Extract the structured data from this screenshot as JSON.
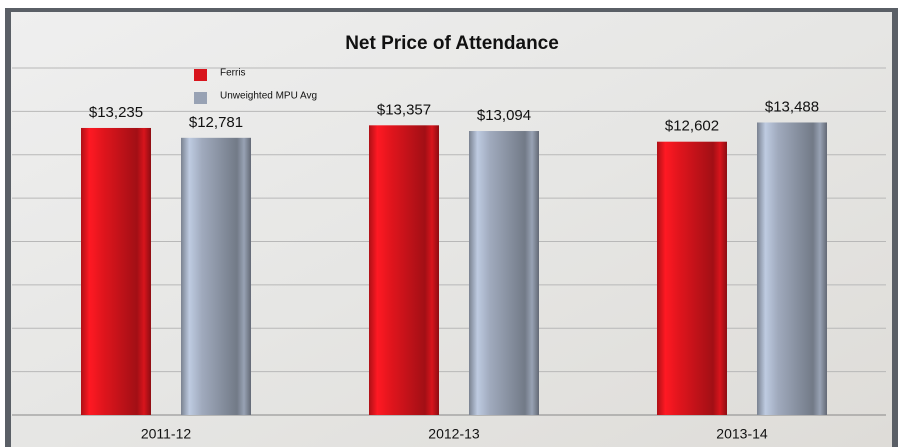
{
  "chart_data": {
    "type": "bar",
    "title": "Net Price of Attendance",
    "categories": [
      "2011-12",
      "2012-13",
      "2013-14"
    ],
    "series": [
      {
        "name": "Ferris",
        "color": "#d8141c",
        "values": [
          13235,
          13357,
          12602
        ],
        "value_labels": [
          "$13,235",
          "$13,357",
          "$12,602"
        ]
      },
      {
        "name": "Unweighted MPU Avg",
        "color": "#98a2b4",
        "values": [
          12781,
          13094,
          13488
        ],
        "value_labels": [
          "$12,781",
          "$13,094",
          "$13,488"
        ]
      }
    ],
    "ylim": [
      0,
      16000
    ],
    "yticks": [
      0,
      2000,
      4000,
      6000,
      8000,
      10000,
      12000,
      14000,
      16000
    ],
    "grid": true
  }
}
